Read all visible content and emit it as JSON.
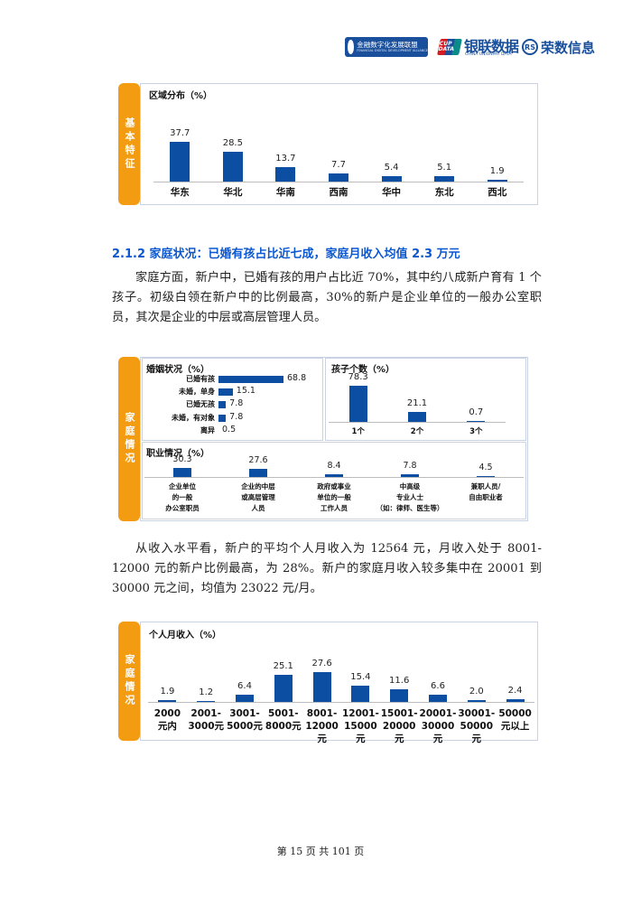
{
  "header": {
    "logo1_text": "金融数字化发展联盟",
    "logo1_sub": "FINANCIAL DIGITAL DEVELOPMENT ALLIANCE",
    "logo2_badge": "CUP DATA",
    "logo2_text": "银联数据",
    "logo2_sub": "CHINA UNIONPAY DATA",
    "logo3_mark": "RS",
    "logo3_text": "荣数信息"
  },
  "colors": {
    "bar": "#0b4ea2",
    "tab": "#f39c12",
    "heading": "#0b57d0"
  },
  "chart1": {
    "tab": "基本特征",
    "chart_data": {
      "type": "bar",
      "title": "区域分布（%）",
      "categories": [
        "华东",
        "华北",
        "华南",
        "西南",
        "华中",
        "东北",
        "西北"
      ],
      "values": [
        37.7,
        28.5,
        13.7,
        7.7,
        5.4,
        5.1,
        1.9
      ],
      "value_labels": [
        "37.7",
        "28.5",
        "13.7",
        "7.7",
        "5.4",
        "5.1",
        "1.9"
      ]
    }
  },
  "section": {
    "heading": "2.1.2 家庭状况：已婚有孩占比近七成，家庭月收入均值 2.3 万元",
    "para1": "家庭方面，新户中，已婚有孩的用户占比近 70%，其中约八成新户育有 1 个孩子。初级白领在新户中的比例最高，30%的新户是企业单位的一般办公室职员，其次是企业的中层或高层管理人员。",
    "para2": "从收入水平看，新户的平均个人月收入为 12564 元，月收入处于 8001-12000 元的新户比例最高，为 28%。新户的家庭月收入较多集中在 20001 到 30000 元之间，均值为 23022 元/月。"
  },
  "chart2": {
    "tab": "家庭情况",
    "chart_data": [
      {
        "type": "bar",
        "orientation": "horizontal",
        "title": "婚姻状况（%）",
        "categories": [
          "已婚有孩",
          "未婚，单身",
          "已婚无孩",
          "未婚，有对象",
          "离异"
        ],
        "values": [
          68.8,
          15.1,
          7.8,
          7.8,
          0.5
        ],
        "value_labels": [
          "68.8",
          "15.1",
          "7.8",
          "7.8",
          "0.5"
        ]
      },
      {
        "type": "bar",
        "title": "孩子个数（%）",
        "categories": [
          "1个",
          "2个",
          "3个"
        ],
        "values": [
          78.3,
          21.1,
          0.7
        ],
        "value_labels": [
          "78.3",
          "21.1",
          "0.7"
        ]
      },
      {
        "type": "bar",
        "title": "职业情况（%）",
        "categories": [
          "企业单位\n的一般\n办公室职员",
          "企业的中层\n或高层管理\n人员",
          "政府或事业\n单位的一般\n工作人员",
          "中高级\n专业人士\n（如：律师、医生等）",
          "兼职人员/\n自由职业者"
        ],
        "values": [
          30.3,
          27.6,
          8.4,
          7.8,
          4.5
        ],
        "value_labels": [
          "30.3",
          "27.6",
          "8.4",
          "7.8",
          "4.5"
        ]
      }
    ]
  },
  "chart3": {
    "tab": "家庭情况",
    "chart_data": {
      "type": "bar",
      "title": "个人月收入（%）",
      "categories": [
        "2000\n元内",
        "2001-\n3000元",
        "3001-\n5000元",
        "5001-\n8000元",
        "8001-\n12000元",
        "12001-\n15000元",
        "15001-\n20000元",
        "20001-\n30000元",
        "30001-\n50000元",
        "50000\n元以上"
      ],
      "values": [
        1.9,
        1.2,
        6.4,
        25.1,
        27.6,
        15.4,
        11.6,
        6.6,
        2.0,
        2.4
      ],
      "value_labels": [
        "1.9",
        "1.2",
        "6.4",
        "25.1",
        "27.6",
        "15.4",
        "11.6",
        "6.6",
        "2.0",
        "2.4"
      ]
    }
  },
  "footer": {
    "page_text": "第 15 页 共 101 页"
  }
}
